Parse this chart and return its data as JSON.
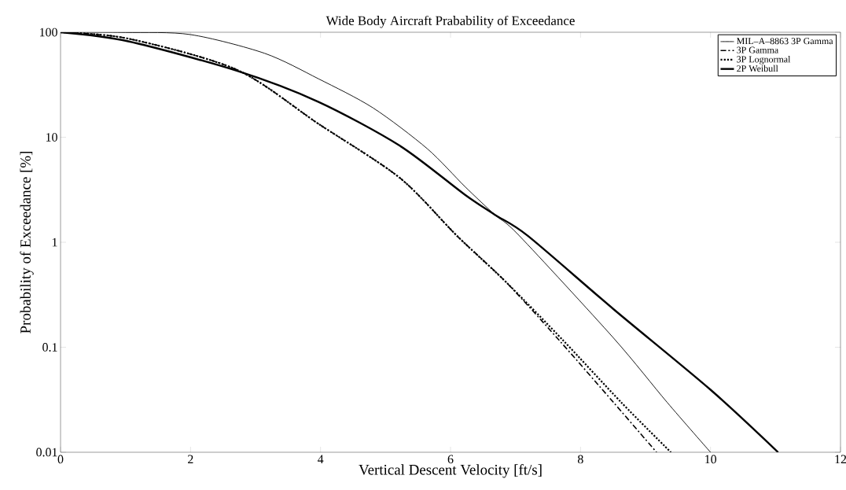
{
  "chart_data": {
    "type": "line",
    "title": "Wide Body Aircraft Prabability of Exceedance",
    "xlabel": "Vertical Descent Velocity [ft/s]",
    "ylabel": "Probability of Exceedance [%]",
    "log": "y",
    "xlim": [
      0,
      12
    ],
    "ylim": [
      0.01,
      100
    ],
    "xticks": [
      0,
      2,
      4,
      6,
      8,
      10,
      12
    ],
    "yticks": [
      0.01,
      0.1,
      1,
      10,
      100
    ],
    "legend": "top right",
    "grid": false,
    "series": [
      {
        "name": "MIL–A–8863 3P Gamma",
        "color": "#000000",
        "line_style": "solid",
        "x": [
          0,
          1,
          2,
          3.14,
          3.97,
          4.81,
          5.64,
          6.22,
          6.68,
          7.06,
          8.51,
          9.33,
          10.0
        ],
        "values": [
          100,
          99.5,
          95,
          63,
          36,
          19,
          7.8,
          3.4,
          1.83,
          1.15,
          0.122,
          0.03,
          0.01
        ]
      },
      {
        "name": "3P Gamma",
        "color": "#000000",
        "line_style": "dashdot",
        "x": [
          0,
          1.04,
          2.71,
          3.97,
          5.22,
          6.1,
          6.85,
          7.68,
          8.51,
          9.17
        ],
        "values": [
          100,
          87,
          44,
          13.4,
          4.1,
          1.15,
          0.42,
          0.115,
          0.0297,
          0.01
        ]
      },
      {
        "name": "3P Lognormal",
        "color": "#000000",
        "line_style": "dotted",
        "x": [
          0,
          1.04,
          2.71,
          3.97,
          5.22,
          6.1,
          6.85,
          7.74,
          8.63,
          9.39
        ],
        "values": [
          100,
          87,
          44,
          13.4,
          4.1,
          1.15,
          0.42,
          0.115,
          0.0297,
          0.01
        ]
      },
      {
        "name": "2P Weibull",
        "color": "#000000",
        "line_style": "solid",
        "x": [
          0,
          1.04,
          2.71,
          3.97,
          5.22,
          6.22,
          6.68,
          7.19,
          8.51,
          10.0,
          11.04
        ],
        "values": [
          100,
          82,
          43,
          21.7,
          8.3,
          2.84,
          1.83,
          1.15,
          0.23,
          0.0394,
          0.01
        ]
      }
    ]
  }
}
